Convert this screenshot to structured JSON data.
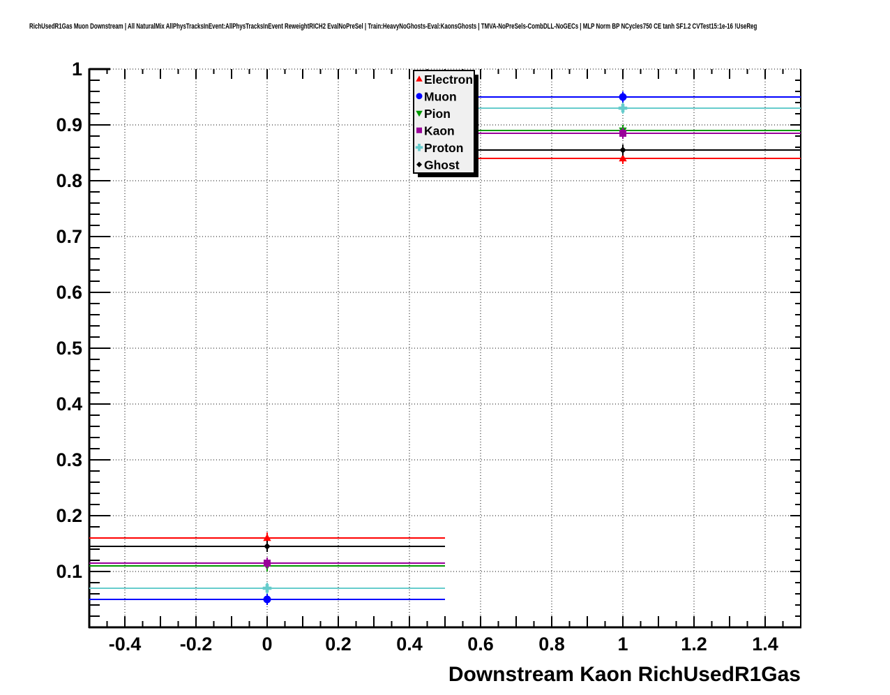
{
  "header": {
    "title": "RichUsedR1Gas Muon Downstream | All NaturalMix AllPhysTracksInEvent:AllPhysTracksInEvent ReweightRICH2 EvalNoPreSel | Train:HeavyNoGhosts-Eval:KaonsGhosts | TMVA-NoPreSels-CombDLL-NoGECs | MLP Norm BP NCycles750 CE tanh SF1.2 CVTest15:1e-16 !UseReg"
  },
  "chart_data": {
    "type": "line",
    "title": "",
    "xlabel": "Downstream Kaon RichUsedR1Gas",
    "ylabel": "",
    "xlim": [
      -0.5,
      1.5
    ],
    "ylim": [
      0,
      1
    ],
    "grid": "dotted",
    "legend_position": "top-center-inside",
    "bin_centers": [
      0,
      1
    ],
    "bin_half_width": 0.5,
    "x_major_ticks": {
      "values": [
        -0.4,
        -0.2,
        0,
        0.2,
        0.4,
        0.6,
        0.8,
        1,
        1.2,
        1.4
      ],
      "labels": [
        "-0.4",
        "-0.2",
        "0",
        "0.2",
        "0.4",
        "0.6",
        "0.8",
        "1",
        "1.2",
        "1.4"
      ]
    },
    "y_major_ticks": {
      "values": [
        0.1,
        0.2,
        0.3,
        0.4,
        0.5,
        0.6,
        0.7,
        0.8,
        0.9,
        1.0
      ],
      "labels": [
        "0.1",
        "0.2",
        "0.3",
        "0.4",
        "0.5",
        "0.6",
        "0.7",
        "0.8",
        "0.9",
        "1"
      ]
    },
    "x_minor_step": 0.05,
    "y_minor_step": 0.02,
    "series": [
      {
        "name": "Electron",
        "color": "#ff0000",
        "marker": "triangle-up",
        "values": [
          0.16,
          0.84
        ]
      },
      {
        "name": "Muon",
        "color": "#0000ff",
        "marker": "circle",
        "values": [
          0.05,
          0.95
        ]
      },
      {
        "name": "Pion",
        "color": "#009900",
        "marker": "triangle-down",
        "values": [
          0.11,
          0.89
        ]
      },
      {
        "name": "Kaon",
        "color": "#990099",
        "marker": "square",
        "values": [
          0.115,
          0.885
        ]
      },
      {
        "name": "Proton",
        "color": "#66cccc",
        "marker": "plus",
        "values": [
          0.07,
          0.93
        ]
      },
      {
        "name": "Ghost",
        "color": "#000000",
        "marker": "diamond",
        "values": [
          0.145,
          0.855
        ]
      }
    ]
  },
  "legend": {
    "entries": [
      "Electron",
      "Muon",
      "Pion",
      "Kaon",
      "Proton",
      "Ghost"
    ]
  },
  "colors": {
    "legend_bg": "#f0f0f0",
    "frame": "#000000",
    "grid": "#000000",
    "background": "#ffffff"
  }
}
